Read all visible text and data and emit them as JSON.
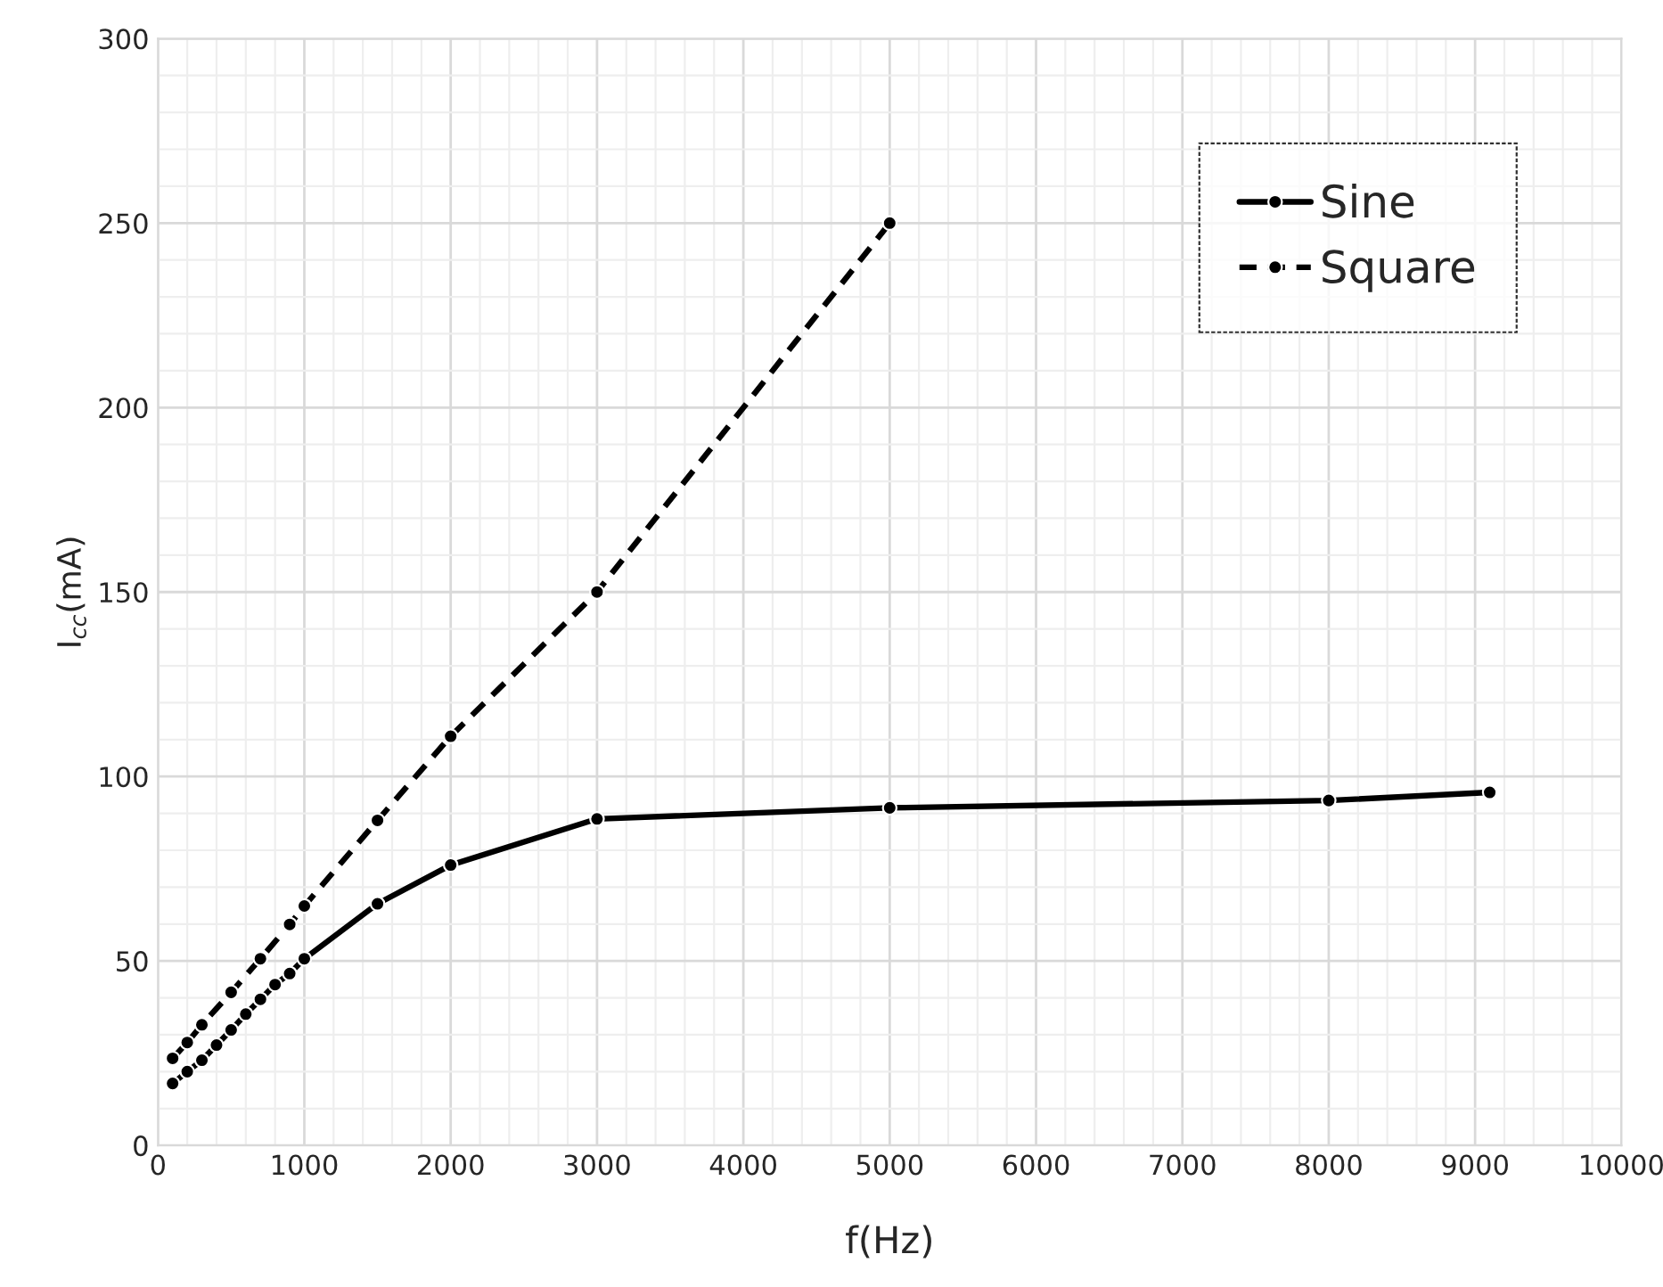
{
  "chart_data": {
    "type": "line",
    "xlabel": "f(Hz)",
    "ylabel": "I$_{cc}$(mA)",
    "xlim": [
      0,
      10000
    ],
    "xticks": [
      0,
      1000,
      2000,
      3000,
      4000,
      5000,
      6000,
      7000,
      8000,
      9000,
      10000
    ],
    "ylim": [
      0,
      300
    ],
    "yticks": [
      0,
      50,
      100,
      150,
      200,
      250,
      300
    ],
    "grid": true,
    "legend": "top right",
    "marker": "circle",
    "series": [
      {
        "name": "Sine",
        "color": "#000000",
        "line_style": "solid",
        "x": [
          100,
          200,
          300,
          400,
          500,
          600,
          700,
          800,
          900,
          1000,
          1500,
          2000,
          3000,
          5000,
          8000,
          9100
        ],
        "values": [
          16.8,
          20.0,
          23.1,
          27.2,
          31.3,
          35.6,
          39.6,
          43.6,
          46.6,
          50.6,
          65.5,
          76.0,
          88.5,
          91.5,
          93.5,
          95.7
        ]
      },
      {
        "name": "Square",
        "color": "#000000",
        "line_style": "dashed",
        "x": [
          100,
          200,
          300,
          500,
          700,
          900,
          1000,
          1500,
          2000,
          3000,
          5000
        ],
        "values": [
          23.6,
          27.9,
          32.7,
          41.5,
          50.6,
          59.9,
          64.9,
          88.1,
          110.9,
          150,
          250
        ]
      }
    ]
  }
}
